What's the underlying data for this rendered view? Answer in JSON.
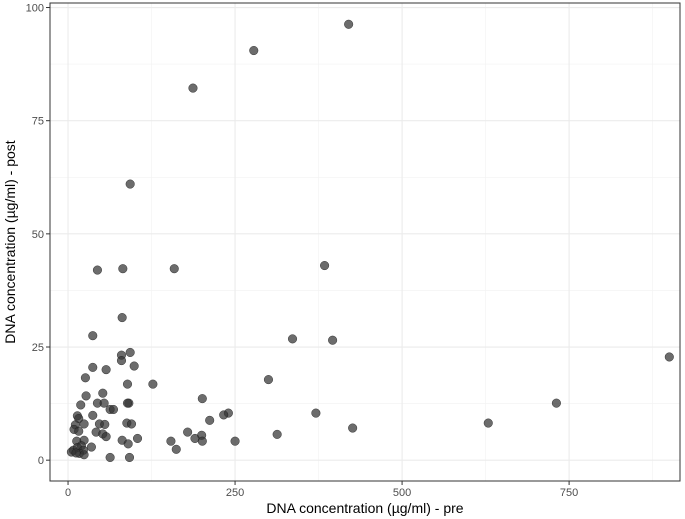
{
  "chart_data": {
    "type": "scatter",
    "xlabel": "DNA concentration (µg/ml) - pre",
    "ylabel": "DNA concentration (µg/ml) - post",
    "xlim": [
      -27,
      916
    ],
    "ylim": [
      -4.6,
      101
    ],
    "x_ticks": [
      0,
      250,
      500,
      750
    ],
    "y_ticks": [
      0,
      25,
      50,
      75,
      100
    ],
    "x_tick_labels": [
      "0",
      "250",
      "500",
      "750"
    ],
    "y_tick_labels": [
      "0",
      "25",
      "50",
      "75",
      "100"
    ],
    "grid": true,
    "legend": "none",
    "point_color": "#333333",
    "series": [
      {
        "points": [
          [
            420,
            96.3
          ],
          [
            278,
            90.5
          ],
          [
            187,
            82.2
          ],
          [
            93,
            61
          ],
          [
            44,
            42
          ],
          [
            82,
            42.3
          ],
          [
            159,
            42.3
          ],
          [
            384,
            43
          ],
          [
            81,
            31.5
          ],
          [
            37,
            27.5
          ],
          [
            336,
            26.8
          ],
          [
            396,
            26.5
          ],
          [
            93,
            23.8
          ],
          [
            80,
            23.2
          ],
          [
            80,
            22
          ],
          [
            37,
            20.5
          ],
          [
            57,
            20
          ],
          [
            99,
            20.8
          ],
          [
            900,
            22.8
          ],
          [
            26,
            18.2
          ],
          [
            300,
            17.8
          ],
          [
            127,
            16.8
          ],
          [
            89,
            16.8
          ],
          [
            27,
            14.2
          ],
          [
            52,
            14.8
          ],
          [
            201,
            13.6
          ],
          [
            731,
            12.6
          ],
          [
            19,
            12.2
          ],
          [
            44,
            12.6
          ],
          [
            54,
            12.6
          ],
          [
            91,
            12.6
          ],
          [
            89,
            12.6
          ],
          [
            63,
            11.2
          ],
          [
            68,
            11.2
          ],
          [
            240,
            10.4
          ],
          [
            233,
            10
          ],
          [
            371,
            10.4
          ],
          [
            14,
            9.8
          ],
          [
            16,
            9.2
          ],
          [
            37,
            9.9
          ],
          [
            212,
            8.8
          ],
          [
            88,
            8.2
          ],
          [
            95,
            8
          ],
          [
            629,
            8.2
          ],
          [
            11,
            7.8
          ],
          [
            24,
            8
          ],
          [
            47,
            8
          ],
          [
            55,
            7.9
          ],
          [
            426,
            7.1
          ],
          [
            9,
            6.8
          ],
          [
            16,
            6.4
          ],
          [
            42,
            6.2
          ],
          [
            52,
            5.8
          ],
          [
            179,
            6.2
          ],
          [
            200,
            5.5
          ],
          [
            313,
            5.7
          ],
          [
            57,
            5.2
          ],
          [
            104,
            4.8
          ],
          [
            190,
            4.8
          ],
          [
            24,
            4.4
          ],
          [
            81,
            4.4
          ],
          [
            154,
            4.2
          ],
          [
            201,
            4.2
          ],
          [
            250,
            4.2
          ],
          [
            13,
            4.2
          ],
          [
            90,
            3.6
          ],
          [
            20,
            3.2
          ],
          [
            35,
            2.9
          ],
          [
            162,
            2.4
          ],
          [
            8,
            2.2
          ],
          [
            14,
            2.8
          ],
          [
            23,
            2.2
          ],
          [
            5,
            1.8
          ],
          [
            17,
            1.5
          ],
          [
            24,
            1.2
          ],
          [
            63,
            0.6
          ],
          [
            92,
            0.6
          ],
          [
            12,
            1.6
          ]
        ]
      }
    ]
  }
}
